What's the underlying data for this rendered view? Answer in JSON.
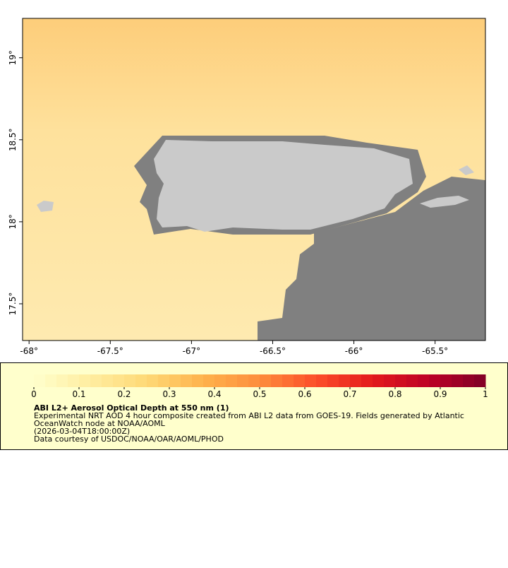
{
  "map": {
    "xlim": [
      -68.04,
      -65.19
    ],
    "ylim": [
      17.276,
      19.24
    ],
    "xticks": [
      {
        "value": -68,
        "label": "-68°"
      },
      {
        "value": -67.5,
        "label": "-67.5°"
      },
      {
        "value": -67,
        "label": "-67°"
      },
      {
        "value": -66.5,
        "label": "-66.5°"
      },
      {
        "value": -66,
        "label": "-66°"
      },
      {
        "value": -65.5,
        "label": "-65.5°"
      }
    ],
    "yticks": [
      {
        "value": 17.5,
        "label": "17.5°"
      },
      {
        "value": 18,
        "label": "18°"
      },
      {
        "value": 18.5,
        "label": "18.5°"
      },
      {
        "value": 19,
        "label": "19°"
      }
    ]
  },
  "colorbar": {
    "lim": [
      0,
      1
    ],
    "ticks": [
      0,
      0.1,
      0.2,
      0.3,
      0.4,
      0.5,
      0.6,
      0.7,
      0.8,
      0.9,
      1
    ],
    "colors": [
      "#ffffcc",
      "#ffeda0",
      "#fed976",
      "#feb24c",
      "#fd8d3c",
      "#fc4e2a",
      "#e31a1c",
      "#bd0026",
      "#800026"
    ]
  },
  "legend": {
    "title": "ABI L2+ Aerosol Optical Depth at 550 nm (1)",
    "lines": [
      "Experimental NRT AOD 4 hour composite created from ABI L2 data from GOES-19. Fields generated by Atlantic",
      "OceanWatch node at NOAA/AOML",
      "(2026-03-04T18:00:00Z)",
      "Data courtesy of USDOC/NOAA/OAR/AOML/PHOD"
    ]
  }
}
